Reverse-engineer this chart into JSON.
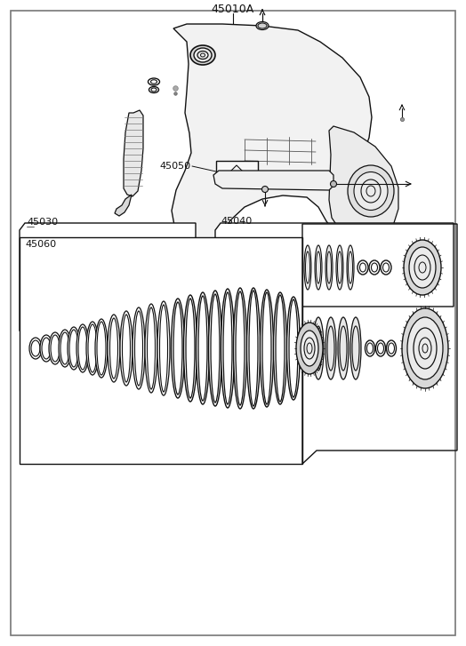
{
  "title": "45010A",
  "bg_color": "#ffffff",
  "border_color": "#777777",
  "line_color": "#111111",
  "label_45030": "45030",
  "label_45040": "45040",
  "label_45050": "45050",
  "label_45060": "45060",
  "fig_width": 5.24,
  "fig_height": 7.27,
  "dpi": 100
}
